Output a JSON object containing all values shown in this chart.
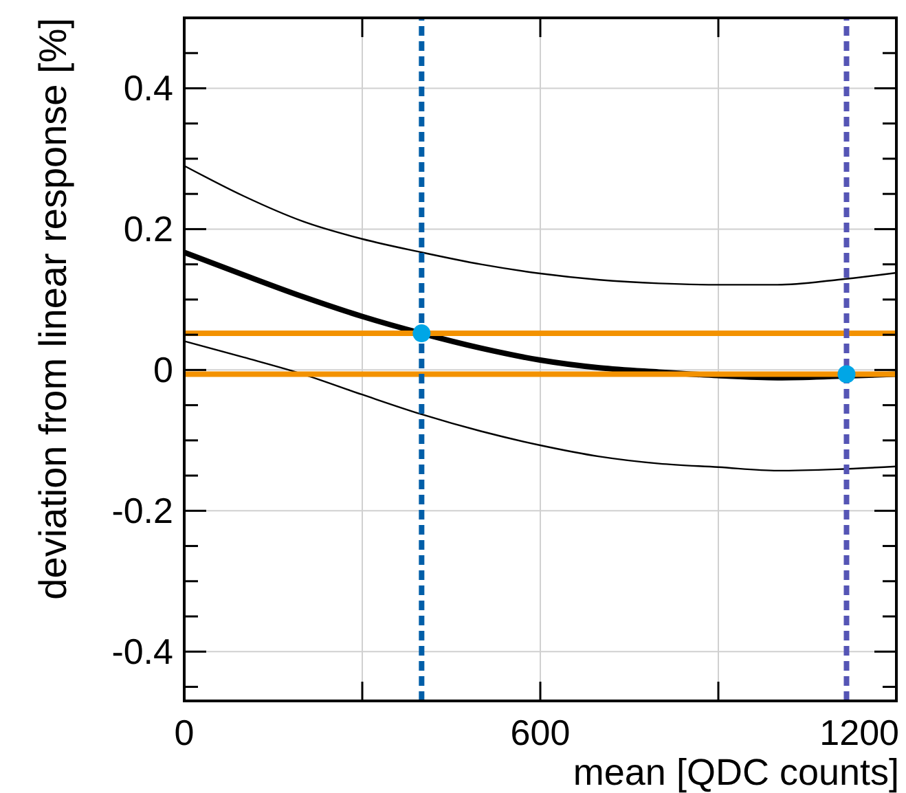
{
  "chart_data": {
    "type": "line",
    "xlabel": "mean [QDC counts]",
    "ylabel": "deviation from linear response [%]",
    "xlim": [
      0,
      1200
    ],
    "ylim": [
      -0.47,
      0.5
    ],
    "xticks": [
      0,
      {
        "value": 300,
        "label": null
      },
      600,
      {
        "value": 900,
        "label": null
      },
      1200
    ],
    "yticks": [
      {
        "value": -0.45,
        "label": null
      },
      -0.4,
      {
        "value": -0.35,
        "label": null
      },
      {
        "value": -0.3,
        "label": null
      },
      {
        "value": -0.25,
        "label": null
      },
      -0.2,
      {
        "value": -0.15,
        "label": null
      },
      {
        "value": -0.1,
        "label": null
      },
      {
        "value": -0.05,
        "label": null
      },
      0,
      {
        "value": 0.05,
        "label": null
      },
      {
        "value": 0.1,
        "label": null
      },
      {
        "value": 0.15,
        "label": null
      },
      0.2,
      {
        "value": 0.25,
        "label": null
      },
      {
        "value": 0.3,
        "label": null
      },
      {
        "value": 0.35,
        "label": null
      },
      0.4,
      {
        "value": 0.45,
        "label": null
      }
    ],
    "grid": true,
    "series": [
      {
        "type": "line",
        "color": "#000000",
        "x": [
          0,
          100,
          200,
          300,
          400,
          500,
          600,
          700,
          800,
          900,
          1000,
          1100,
          1200
        ],
        "values": [
          0.167,
          0.135,
          0.104,
          0.076,
          0.052,
          0.031,
          0.014,
          0.003,
          -0.003,
          -0.008,
          -0.011,
          -0.009,
          -0.006
        ]
      },
      {
        "type": "line",
        "color": "#000000",
        "x": [
          0,
          100,
          200,
          300,
          400,
          500,
          600,
          700,
          800,
          900,
          1000,
          1100,
          1200
        ],
        "values": [
          0.29,
          0.247,
          0.211,
          0.186,
          0.167,
          0.15,
          0.137,
          0.128,
          0.123,
          0.121,
          0.121,
          0.128,
          0.138
        ]
      },
      {
        "type": "line",
        "color": "#000000",
        "x": [
          0,
          100,
          200,
          300,
          400,
          500,
          600,
          700,
          800,
          900,
          1000,
          1100,
          1200
        ],
        "values": [
          0.041,
          0.018,
          -0.006,
          -0.035,
          -0.063,
          -0.087,
          -0.107,
          -0.123,
          -0.133,
          -0.138,
          -0.143,
          -0.141,
          -0.137
        ]
      },
      {
        "type": "scatter",
        "color": "#00a6e6",
        "marker": "circle",
        "x": [
          400,
          1116
        ],
        "values": [
          0.052,
          -0.006
        ]
      }
    ],
    "ref_lines": [
      {
        "axis": "y",
        "value": 0.052,
        "color": "#f39200",
        "line_style": "solid"
      },
      {
        "axis": "y",
        "value": -0.006,
        "color": "#f39200",
        "line_style": "solid"
      },
      {
        "axis": "x",
        "value": 400,
        "color": "#005ea8",
        "line_style": "dashed"
      },
      {
        "axis": "x",
        "value": 1116,
        "color": "#5555b5",
        "line_style": "dashed"
      }
    ]
  }
}
